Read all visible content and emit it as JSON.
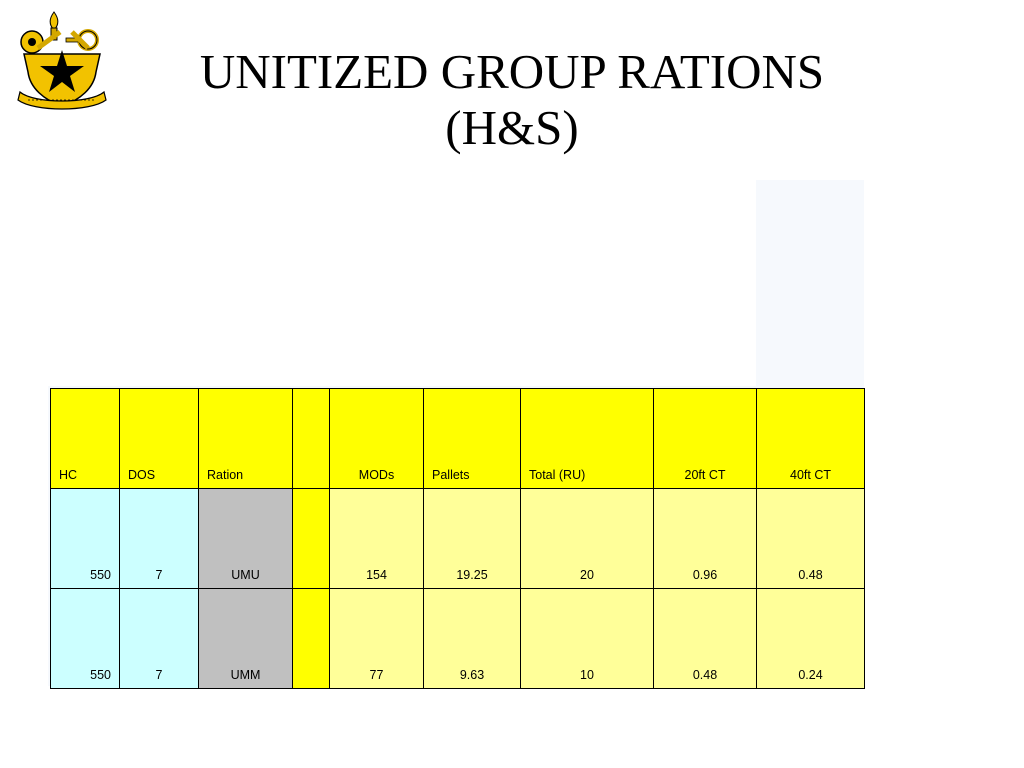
{
  "slide": {
    "title_line1": "UNITIZED GROUP RATIONS",
    "title_line2": "(H&S)",
    "logo_icon": "army-logistics-crest-icon"
  },
  "table": {
    "headers": [
      "HC",
      "DOS",
      "Ration",
      "",
      "MODs",
      "Pallets",
      "Total (RU)",
      "20ft CT",
      "40ft CT"
    ],
    "rows": [
      [
        "550",
        "7",
        "UMU",
        "",
        "154",
        "19.25",
        "20",
        "0.96",
        "0.48"
      ],
      [
        "550",
        "7",
        "UMM",
        "",
        "77",
        "9.63",
        "10",
        "0.48",
        "0.24"
      ]
    ]
  },
  "colors": {
    "header_fill": "#ffff00",
    "input_fill": "#ccffff",
    "ration_fill": "#c0c0c0",
    "result_fill": "#ffff99"
  }
}
